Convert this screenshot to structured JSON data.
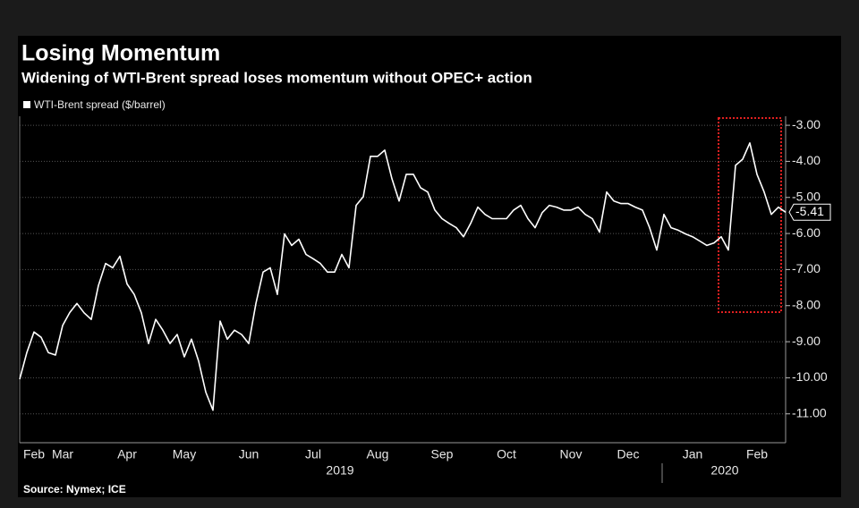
{
  "chart_data": {
    "type": "line",
    "title": "Losing Momentum",
    "subtitle": "Widening of WTI-Brent spread loses momentum without OPEC+ action",
    "source": "Source: Nymex; ICE",
    "year_labels": [
      "2019",
      "2020"
    ],
    "categories": [
      null,
      null,
      "Feb",
      null,
      null,
      null,
      "Mar",
      null,
      null,
      null,
      null,
      null,
      null,
      null,
      null,
      "Apr",
      null,
      null,
      null,
      null,
      null,
      null,
      null,
      "May",
      null,
      null,
      null,
      null,
      null,
      null,
      null,
      null,
      "Jun",
      null,
      null,
      null,
      null,
      null,
      null,
      null,
      null,
      "Jul",
      null,
      null,
      null,
      null,
      null,
      null,
      null,
      null,
      "Aug",
      null,
      null,
      null,
      null,
      null,
      null,
      null,
      null,
      "Sep",
      null,
      null,
      null,
      null,
      null,
      null,
      null,
      null,
      "Oct",
      null,
      null,
      null,
      null,
      null,
      null,
      null,
      null,
      "Nov",
      null,
      null,
      null,
      null,
      null,
      null,
      null,
      "Dec",
      null,
      null,
      null,
      null,
      null,
      null,
      null,
      null,
      "Jan",
      null,
      null,
      null,
      null,
      null,
      null,
      null,
      null,
      "Feb",
      null,
      null,
      null,
      null
    ],
    "series": [
      {
        "name": "WTI-Brent spread ($/barrel)",
        "color": "#ffffff",
        "values": [
          -10.04,
          -9.3,
          -8.73,
          -8.88,
          -9.3,
          -9.37,
          -8.55,
          -8.19,
          -7.94,
          -8.2,
          -8.38,
          -7.44,
          -6.83,
          -6.95,
          -6.63,
          -7.4,
          -7.69,
          -8.2,
          -9.05,
          -8.38,
          -8.68,
          -9.05,
          -8.8,
          -9.42,
          -8.93,
          -9.54,
          -10.4,
          -10.9,
          -8.43,
          -8.93,
          -8.68,
          -8.8,
          -9.05,
          -7.94,
          -7.07,
          -6.95,
          -7.69,
          -6.01,
          -6.33,
          -6.16,
          -6.58,
          -6.7,
          -6.83,
          -7.07,
          -7.07,
          -6.58,
          -6.95,
          -5.22,
          -4.98,
          -3.86,
          -3.86,
          -3.69,
          -4.48,
          -5.1,
          -4.36,
          -4.36,
          -4.73,
          -4.85,
          -5.35,
          -5.59,
          -5.72,
          -5.84,
          -6.09,
          -5.72,
          -5.27,
          -5.47,
          -5.59,
          -5.59,
          -5.59,
          -5.35,
          -5.22,
          -5.59,
          -5.84,
          -5.42,
          -5.22,
          -5.27,
          -5.35,
          -5.35,
          -5.27,
          -5.47,
          -5.59,
          -5.96,
          -4.85,
          -5.1,
          -5.17,
          -5.17,
          -5.27,
          -5.35,
          -5.84,
          -6.46,
          -5.47,
          -5.84,
          -5.91,
          -6.01,
          -6.09,
          -6.21,
          -6.33,
          -6.26,
          -6.09,
          -6.46,
          -4.11,
          -3.94,
          -3.49,
          -4.36,
          -4.85,
          -5.47,
          -5.27,
          -5.41
        ]
      }
    ],
    "ylim": [
      -11.8,
      -2.75
    ],
    "yticks": [
      {
        "value": -3,
        "label": "-3.00"
      },
      {
        "value": -4,
        "label": "-4.00"
      },
      {
        "value": -5,
        "label": "-5.00"
      },
      {
        "value": -6,
        "label": "-6.00"
      },
      {
        "value": -7,
        "label": "-7.00"
      },
      {
        "value": -8,
        "label": "-8.00"
      },
      {
        "value": -9,
        "label": "-9.00"
      },
      {
        "value": -10,
        "label": "-10.00"
      },
      {
        "value": -11,
        "label": "-11.00"
      }
    ],
    "grid": true,
    "legend": "top-left"
  }
}
